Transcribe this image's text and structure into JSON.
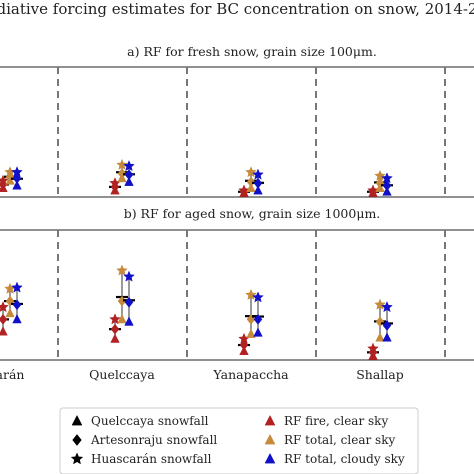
{
  "chart_data": [
    {
      "type": "scatter",
      "title": "diative forcing estimates for BC concentration on snow, 2014-2",
      "panel_title": "a) RF for fresh snow, grain size 100μm.",
      "categories": [
        "arán",
        "Quelccaya",
        "Yanapaccha",
        "Shallap"
      ],
      "series": [
        {
          "name": "RF fire, clear sky",
          "color": "#b22222",
          "values": [
            [
              0.04,
              0.07,
              0.1
            ],
            [
              0.02,
              0.05,
              0.08
            ],
            [
              0.0,
              0.01,
              0.02
            ],
            [
              0.0,
              0.01,
              0.02
            ]
          ]
        },
        {
          "name": "RF total, clear sky",
          "color": "#c68a3a",
          "values": [
            [
              0.1,
              0.13,
              0.17
            ],
            [
              0.12,
              0.16,
              0.23
            ],
            [
              0.04,
              0.09,
              0.17
            ],
            [
              0.04,
              0.08,
              0.14
            ]
          ]
        },
        {
          "name": "RF total, cloudy sky",
          "color": "#1010c8",
          "values": [
            [
              0.06,
              0.12,
              0.17
            ],
            [
              0.09,
              0.15,
              0.22
            ],
            [
              0.02,
              0.08,
              0.15
            ],
            [
              0.01,
              0.06,
              0.12
            ]
          ]
        }
      ],
      "ylim": [
        0,
        1
      ]
    },
    {
      "type": "scatter",
      "panel_title": "b) RF for aged snow, grain size 1000μm.",
      "categories": [
        "arán",
        "Quelccaya",
        "Yanapaccha",
        "Shallap"
      ],
      "series": [
        {
          "name": "RF fire, clear sky",
          "color": "#b22222",
          "values": [
            [
              0.2,
              0.3,
              0.4
            ],
            [
              0.14,
              0.22,
              0.3
            ],
            [
              0.04,
              0.09,
              0.14
            ],
            [
              0.0,
              0.03,
              0.06
            ]
          ]
        },
        {
          "name": "RF total, clear sky",
          "color": "#c68a3a",
          "values": [
            [
              0.35,
              0.45,
              0.55
            ],
            [
              0.3,
              0.45,
              0.7
            ],
            [
              0.18,
              0.3,
              0.5
            ],
            [
              0.15,
              0.28,
              0.42
            ]
          ]
        },
        {
          "name": "RF total, cloudy sky",
          "color": "#1010c8",
          "values": [
            [
              0.3,
              0.42,
              0.56
            ],
            [
              0.28,
              0.44,
              0.65
            ],
            [
              0.19,
              0.3,
              0.48
            ],
            [
              0.15,
              0.25,
              0.4
            ]
          ]
        }
      ],
      "ylim": [
        0,
        1
      ],
      "x_tick_labels": [
        "arán",
        "Quelccaya",
        "Yanapaccha",
        "Shallap"
      ]
    }
  ],
  "legend": {
    "items": [
      {
        "label": "Quelccaya snowfall",
        "symbol": "triangle",
        "color": "#000000"
      },
      {
        "label": "Artesonraju snowfall",
        "symbol": "diamond",
        "color": "#000000"
      },
      {
        "label": "Huascarán snowfall",
        "symbol": "star",
        "color": "#000000"
      },
      {
        "label": "RF fire, clear sky",
        "symbol": "triangle",
        "color": "#b22222"
      },
      {
        "label": "RF total, clear sky",
        "symbol": "triangle",
        "color": "#c68a3a"
      },
      {
        "label": "RF total, cloudy sky",
        "symbol": "triangle",
        "color": "#1010c8"
      }
    ],
    "placement": "bottom"
  }
}
